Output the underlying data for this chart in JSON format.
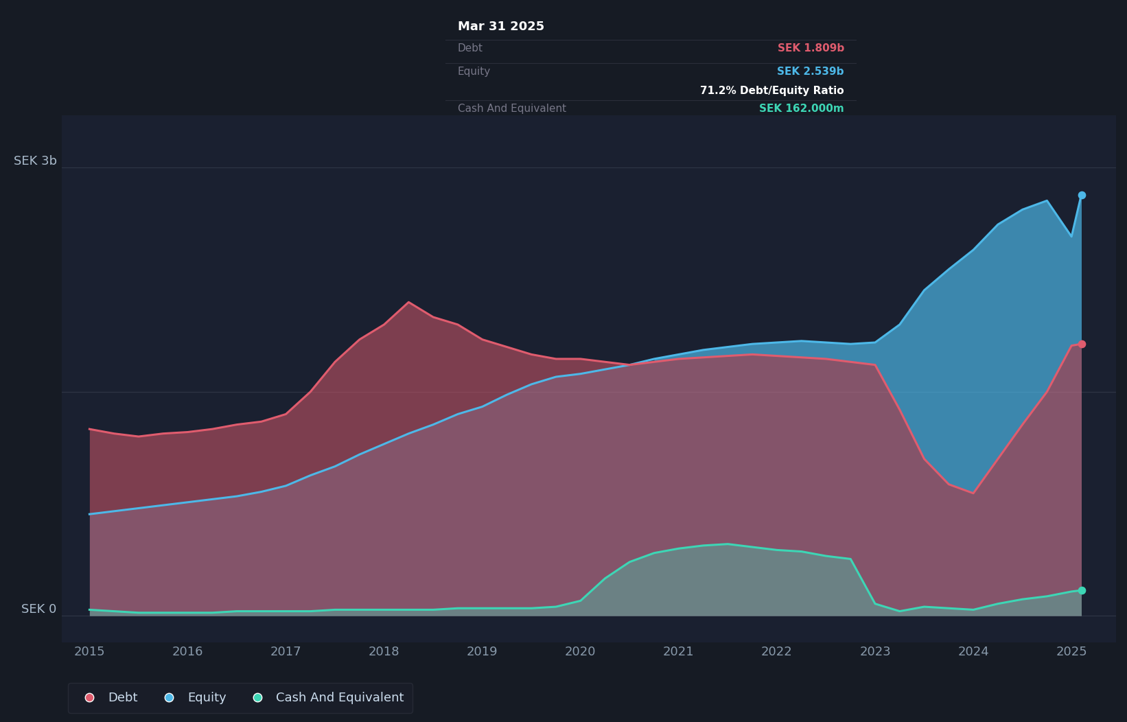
{
  "bg_color": "#161b24",
  "plot_bg_color": "#1a2030",
  "title": "Mar 31 2025",
  "y_label_3b": "SEK 3b",
  "y_label_0": "SEK 0",
  "x_ticks": [
    2015,
    2016,
    2017,
    2018,
    2019,
    2020,
    2021,
    2022,
    2023,
    2024,
    2025
  ],
  "debt_color": "#e05c6e",
  "equity_color": "#4db8e8",
  "cash_color": "#3dd6b5",
  "ylim_min": -0.18,
  "ylim_max": 3.35,
  "time_points": [
    2015.0,
    2015.25,
    2015.5,
    2015.75,
    2016.0,
    2016.25,
    2016.5,
    2016.75,
    2017.0,
    2017.25,
    2017.5,
    2017.75,
    2018.0,
    2018.25,
    2018.5,
    2018.75,
    2019.0,
    2019.25,
    2019.5,
    2019.75,
    2020.0,
    2020.25,
    2020.5,
    2020.75,
    2021.0,
    2021.25,
    2021.5,
    2021.75,
    2022.0,
    2022.25,
    2022.5,
    2022.75,
    2023.0,
    2023.25,
    2023.5,
    2023.75,
    2024.0,
    2024.25,
    2024.5,
    2024.75,
    2025.0,
    2025.1
  ],
  "debt_values": [
    1.25,
    1.22,
    1.2,
    1.22,
    1.23,
    1.25,
    1.28,
    1.3,
    1.35,
    1.5,
    1.7,
    1.85,
    1.95,
    2.1,
    2.0,
    1.95,
    1.85,
    1.8,
    1.75,
    1.72,
    1.72,
    1.7,
    1.68,
    1.7,
    1.72,
    1.73,
    1.74,
    1.75,
    1.74,
    1.73,
    1.72,
    1.7,
    1.68,
    1.38,
    1.05,
    0.88,
    0.82,
    1.05,
    1.28,
    1.5,
    1.809,
    1.82
  ],
  "equity_values": [
    0.68,
    0.7,
    0.72,
    0.74,
    0.76,
    0.78,
    0.8,
    0.83,
    0.87,
    0.94,
    1.0,
    1.08,
    1.15,
    1.22,
    1.28,
    1.35,
    1.4,
    1.48,
    1.55,
    1.6,
    1.62,
    1.65,
    1.68,
    1.72,
    1.75,
    1.78,
    1.8,
    1.82,
    1.83,
    1.84,
    1.83,
    1.82,
    1.83,
    1.95,
    2.18,
    2.32,
    2.45,
    2.62,
    2.72,
    2.78,
    2.539,
    2.82
  ],
  "cash_values": [
    0.04,
    0.03,
    0.02,
    0.02,
    0.02,
    0.02,
    0.03,
    0.03,
    0.03,
    0.03,
    0.04,
    0.04,
    0.04,
    0.04,
    0.04,
    0.05,
    0.05,
    0.05,
    0.05,
    0.06,
    0.1,
    0.25,
    0.36,
    0.42,
    0.45,
    0.47,
    0.48,
    0.46,
    0.44,
    0.43,
    0.4,
    0.38,
    0.08,
    0.03,
    0.06,
    0.05,
    0.04,
    0.08,
    0.11,
    0.13,
    0.162,
    0.17
  ],
  "tooltip": {
    "title": "Mar 31 2025",
    "debt_label": "Debt",
    "debt_value": "SEK 1.809b",
    "equity_label": "Equity",
    "equity_value": "SEK 2.539b",
    "ratio_text": "71.2% Debt/Equity Ratio",
    "cash_label": "Cash And Equivalent",
    "cash_value": "SEK 162.000m"
  },
  "legend_items": [
    {
      "label": "Debt",
      "color": "#e05c6e"
    },
    {
      "label": "Equity",
      "color": "#4db8e8"
    },
    {
      "label": "Cash And Equivalent",
      "color": "#3dd6b5"
    }
  ]
}
